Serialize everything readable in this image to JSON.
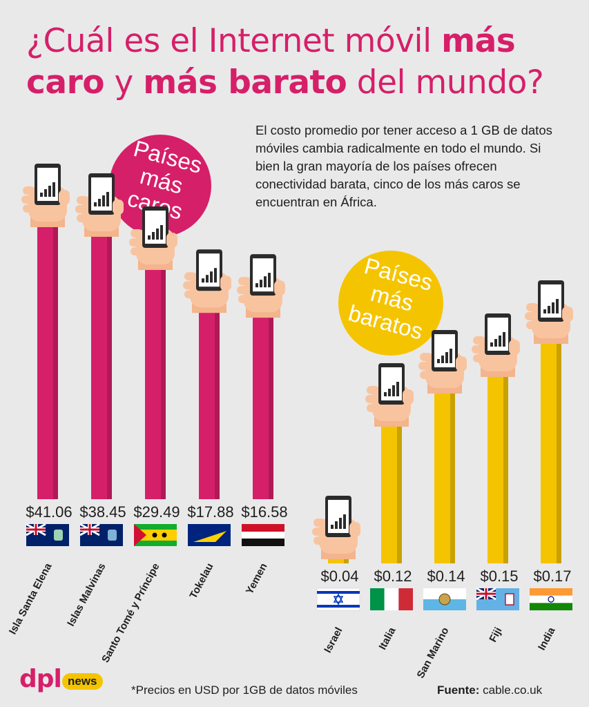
{
  "title": {
    "p1": "¿Cuál es el Internet móvil ",
    "b1": "más",
    "p2": "caro",
    "p3": " y ",
    "b2": "más barato",
    "p4": " del mundo?"
  },
  "description": "El costo promedio por tener acceso a 1 GB de datos móviles cambia radicalmente en todo el mundo. Si bien la gran mayoría de los países ofrecen conectividad barata, cinco de los más caros se encuentran en África.",
  "footnote": "*Precios en USD por 1GB de datos móviles",
  "source": {
    "label": "Fuente:",
    "value": " cable.co.uk"
  },
  "logo": {
    "main": "dpl",
    "badge": "news"
  },
  "colors": {
    "expensive": "#d61f69",
    "cheap": "#f5c400",
    "background": "#e9e9ea"
  },
  "chart_data": [
    {
      "type": "bar",
      "title": "Países más caros",
      "categories": [
        "Isla Santa Elena",
        "Islas Malvinas",
        "Santo Tomé y Príncipe",
        "Tokelau",
        "Yemen"
      ],
      "values": [
        41.06,
        38.45,
        29.49,
        17.88,
        16.58
      ],
      "labels": [
        "$41.06",
        "$38.45",
        "$29.49",
        "$17.88",
        "$16.58"
      ],
      "color": "#d61f69"
    },
    {
      "type": "bar",
      "title": "Países más baratos",
      "categories": [
        "Israel",
        "Italia",
        "San Marino",
        "Fiji",
        "India"
      ],
      "values": [
        0.04,
        0.12,
        0.14,
        0.15,
        0.17
      ],
      "labels": [
        "$0.04",
        "$0.12",
        "$0.14",
        "$0.15",
        "$0.17"
      ],
      "color": "#f5c400"
    }
  ]
}
